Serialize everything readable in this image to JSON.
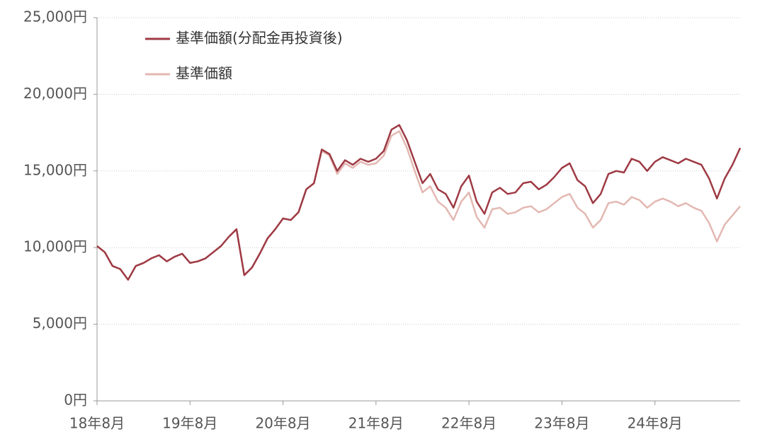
{
  "chart_data": {
    "type": "line",
    "categories": [
      "18年8月",
      null,
      null,
      null,
      null,
      null,
      null,
      null,
      null,
      null,
      null,
      null,
      "19年8月",
      null,
      null,
      null,
      null,
      null,
      null,
      null,
      null,
      null,
      null,
      null,
      "20年8月",
      null,
      null,
      null,
      null,
      null,
      null,
      null,
      null,
      null,
      null,
      null,
      "21年8月",
      null,
      null,
      null,
      null,
      null,
      null,
      null,
      null,
      null,
      null,
      null,
      "22年8月",
      null,
      null,
      null,
      null,
      null,
      null,
      null,
      null,
      null,
      null,
      null,
      "23年8月",
      null,
      null,
      null,
      null,
      null,
      null,
      null,
      null,
      null,
      null,
      null,
      "24年8月",
      null,
      null,
      null,
      null,
      null,
      null,
      null,
      null,
      null,
      null,
      null
    ],
    "series": [
      {
        "name": "基準価額(分配金再投資後)",
        "color": "#9e3a44",
        "values": [
          10100,
          9700,
          8800,
          8600,
          7900,
          8800,
          9000,
          9300,
          9500,
          9100,
          9400,
          9600,
          9000,
          9100,
          9300,
          9700,
          10100,
          10700,
          11200,
          8200,
          8700,
          9600,
          10600,
          11200,
          11900,
          11800,
          12300,
          13800,
          14200,
          16400,
          16100,
          15000,
          15700,
          15400,
          15800,
          15600,
          15800,
          16300,
          17700,
          18000,
          17000,
          15600,
          14200,
          14800,
          13800,
          13500,
          12600,
          14000,
          14700,
          13000,
          12200,
          13600,
          13900,
          13500,
          13600,
          14200,
          14300,
          13800,
          14100,
          14600,
          15200,
          15500,
          14400,
          14000,
          12900,
          13500,
          14800,
          15000,
          14900,
          15800,
          15600,
          15000,
          15600,
          15900,
          15700,
          15500,
          15800,
          15600,
          15400,
          14500,
          13200,
          14500,
          15400,
          16500
        ]
      },
      {
        "name": "基準価額",
        "color": "#e3b8b2",
        "values": [
          10100,
          9700,
          8800,
          8600,
          7900,
          8800,
          9000,
          9300,
          9500,
          9100,
          9400,
          9600,
          9000,
          9100,
          9300,
          9700,
          10100,
          10700,
          11200,
          8200,
          8700,
          9600,
          10600,
          11200,
          11900,
          11800,
          12300,
          13800,
          14200,
          16300,
          16000,
          14800,
          15500,
          15200,
          15600,
          15400,
          15500,
          16000,
          17300,
          17600,
          16500,
          15000,
          13600,
          14000,
          13000,
          12600,
          11800,
          13000,
          13600,
          12000,
          11300,
          12500,
          12600,
          12200,
          12300,
          12600,
          12700,
          12300,
          12500,
          12900,
          13300,
          13500,
          12600,
          12200,
          11300,
          11800,
          12900,
          13000,
          12800,
          13300,
          13100,
          12600,
          13000,
          13200,
          13000,
          12700,
          12900,
          12600,
          12400,
          11600,
          10400,
          11500,
          12100,
          12700
        ]
      }
    ],
    "ylim": [
      0,
      25000
    ],
    "yticks": [
      {
        "value": 0,
        "label": "0円"
      },
      {
        "value": 5000,
        "label": "5,000円"
      },
      {
        "value": 10000,
        "label": "10,000円"
      },
      {
        "value": 15000,
        "label": "15,000円"
      },
      {
        "value": 20000,
        "label": "20,000円"
      },
      {
        "value": 25000,
        "label": "25,000円"
      }
    ],
    "grid": true
  }
}
